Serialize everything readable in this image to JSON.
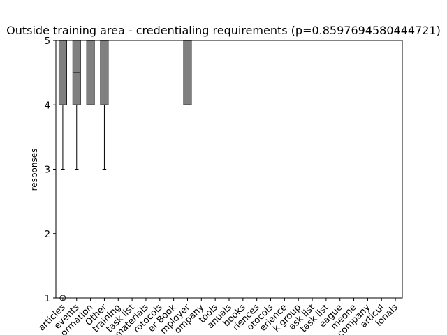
{
  "chart_data": {
    "type": "boxplot",
    "title": "Outside training area - credentialing requirements (p=0.8597694580444721)",
    "xlabel": "",
    "ylabel": "responses",
    "ylim": [
      1,
      5
    ],
    "yticks": [
      1,
      2,
      3,
      4,
      5
    ],
    "grid": false,
    "box_color": "#808080",
    "categories": [
      "Scholarly articles",
      "Informal events",
      "Professional information",
      "Other",
      "On-the-job training",
      "A credentialing task list",
      "Training materials",
      "Workshop protocols",
      "A career book",
      "My employer",
      "My company",
      "Internal tools",
      "Manuals",
      "Guidebooks",
      "Prior experiences",
      "Job protocols",
      "Work experience",
      "A working group",
      "A task list",
      "The task list",
      "A colleague",
      "Someone",
      "Our company",
      "A particular",
      "Professionals"
    ],
    "visible_category_fragments": [
      "articles",
      "events",
      "ormation",
      "Other",
      "training",
      "task list",
      "materials",
      "rotocols",
      "er Book",
      "mployer",
      "ompany",
      "tools",
      "anuals",
      "books",
      "riences",
      "otocols",
      "erience",
      "k group",
      "ask list",
      "task list",
      "eague",
      "meone",
      "company",
      "articul",
      "ionals"
    ],
    "boxes": [
      {
        "category_index": 0,
        "q1": 4,
        "median": 5,
        "q3": 5,
        "whisker_low": 3,
        "whisker_high": 5,
        "outliers": [
          1
        ]
      },
      {
        "category_index": 1,
        "q1": 4,
        "median": 4.5,
        "q3": 5,
        "whisker_low": 3,
        "whisker_high": 5,
        "outliers": []
      },
      {
        "category_index": 2,
        "q1": 4,
        "median": 5,
        "q3": 5,
        "whisker_low": 4,
        "whisker_high": 5,
        "outliers": []
      },
      {
        "category_index": 3,
        "q1": 4,
        "median": 5,
        "q3": 5,
        "whisker_low": 3,
        "whisker_high": 5,
        "outliers": []
      },
      {
        "category_index": 9,
        "q1": 4,
        "median": 5,
        "q3": 5,
        "whisker_low": 4,
        "whisker_high": 5,
        "outliers": []
      }
    ]
  }
}
